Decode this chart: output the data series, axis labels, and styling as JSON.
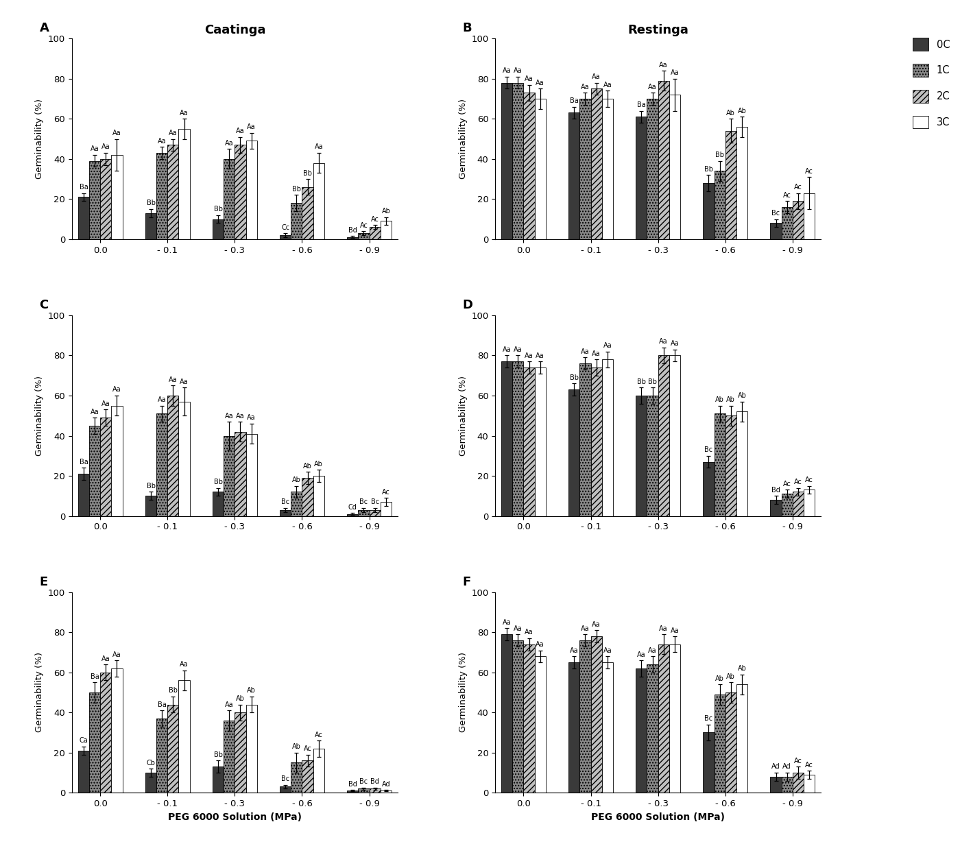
{
  "panels": [
    "A",
    "B",
    "C",
    "D",
    "E",
    "F"
  ],
  "panel_titles": {
    "A": "Caatinga",
    "B": "Restinga",
    "C": "",
    "D": "",
    "E": "",
    "F": ""
  },
  "x_labels": [
    "0.0",
    "- 0.1",
    "- 0.3",
    "- 0.6",
    "- 0.9"
  ],
  "legend_labels": [
    "0C",
    "1C",
    "2C",
    "3C"
  ],
  "bar_colors": [
    "#3a3a3a",
    "#888888",
    "#c0c0c0",
    "#ffffff"
  ],
  "bar_hatches": [
    "",
    "....",
    "////",
    ""
  ],
  "bar_edgecolors": [
    "#000000",
    "#000000",
    "#000000",
    "#000000"
  ],
  "ylabel": "Germinability (%)",
  "xlabel": "PEG 6000 Solution (MPa)",
  "data": {
    "A": {
      "values": [
        [
          21,
          39,
          40,
          42
        ],
        [
          13,
          43,
          47,
          55
        ],
        [
          10,
          40,
          47,
          49
        ],
        [
          2,
          18,
          26,
          38
        ],
        [
          1,
          3,
          6,
          9
        ]
      ],
      "errors": [
        [
          2,
          3,
          3,
          8
        ],
        [
          2,
          3,
          3,
          5
        ],
        [
          2,
          5,
          4,
          4
        ],
        [
          1,
          4,
          4,
          5
        ],
        [
          0.5,
          1,
          1,
          2
        ]
      ],
      "labels": [
        [
          "Ba",
          "Aa",
          "Aa",
          "Aa"
        ],
        [
          "Bb",
          "Aa",
          "Aa",
          "Aa"
        ],
        [
          "Bb",
          "Aa",
          "Aa",
          "Aa"
        ],
        [
          "Cc",
          "Bb",
          "Bb",
          "Aa"
        ],
        [
          "Bd",
          "Ac",
          "Ac",
          "Ab"
        ]
      ]
    },
    "B": {
      "values": [
        [
          78,
          78,
          73,
          70
        ],
        [
          63,
          70,
          75,
          70
        ],
        [
          61,
          70,
          79,
          72
        ],
        [
          28,
          34,
          54,
          56
        ],
        [
          8,
          16,
          19,
          23
        ]
      ],
      "errors": [
        [
          3,
          3,
          4,
          5
        ],
        [
          3,
          3,
          3,
          4
        ],
        [
          3,
          3,
          5,
          8
        ],
        [
          4,
          5,
          6,
          5
        ],
        [
          2,
          3,
          4,
          8
        ]
      ],
      "labels": [
        [
          "Aa",
          "Aa",
          "Aa",
          "Aa"
        ],
        [
          "Ba",
          "Aa",
          "Aa",
          "Aa"
        ],
        [
          "Ba",
          "Aa",
          "Aa",
          "Aa"
        ],
        [
          "Bb",
          "Bb",
          "Ab",
          "Ab"
        ],
        [
          "Bc",
          "Ac",
          "Ac",
          "Ac"
        ]
      ]
    },
    "C": {
      "values": [
        [
          21,
          45,
          49,
          55
        ],
        [
          10,
          51,
          60,
          57
        ],
        [
          12,
          40,
          42,
          41
        ],
        [
          3,
          12,
          19,
          20
        ],
        [
          1,
          3,
          3,
          7
        ]
      ],
      "errors": [
        [
          3,
          4,
          4,
          5
        ],
        [
          2,
          4,
          5,
          7
        ],
        [
          2,
          7,
          5,
          5
        ],
        [
          1,
          3,
          3,
          3
        ],
        [
          0.5,
          1,
          1,
          2
        ]
      ],
      "labels": [
        [
          "Ba",
          "Aa",
          "Aa",
          "Aa"
        ],
        [
          "Bb",
          "Aa",
          "Aa",
          "Aa"
        ],
        [
          "Bb",
          "Aa",
          "Aa",
          "Aa"
        ],
        [
          "Bc",
          "Ab",
          "Ab",
          "Ab"
        ],
        [
          "Cd",
          "Bc",
          "Bc",
          "Ac"
        ]
      ]
    },
    "D": {
      "values": [
        [
          77,
          77,
          74,
          74
        ],
        [
          63,
          76,
          74,
          78
        ],
        [
          60,
          60,
          80,
          80
        ],
        [
          27,
          51,
          50,
          52
        ],
        [
          8,
          11,
          12,
          13
        ]
      ],
      "errors": [
        [
          3,
          3,
          3,
          3
        ],
        [
          3,
          3,
          4,
          4
        ],
        [
          4,
          4,
          4,
          3
        ],
        [
          3,
          4,
          5,
          5
        ],
        [
          2,
          2,
          2,
          2
        ]
      ],
      "labels": [
        [
          "Aa",
          "Aa",
          "Aa",
          "Aa"
        ],
        [
          "Bb",
          "Aa",
          "Aa",
          "Aa"
        ],
        [
          "Bb",
          "Bb",
          "Aa",
          "Aa"
        ],
        [
          "Bc",
          "Ab",
          "Ab",
          "Ab"
        ],
        [
          "Bd",
          "Ac",
          "Ac",
          "Ac"
        ]
      ]
    },
    "E": {
      "values": [
        [
          21,
          50,
          60,
          62
        ],
        [
          10,
          37,
          44,
          56
        ],
        [
          13,
          36,
          40,
          44
        ],
        [
          3,
          15,
          16,
          22
        ],
        [
          1,
          2,
          2,
          1
        ]
      ],
      "errors": [
        [
          2,
          5,
          4,
          4
        ],
        [
          2,
          4,
          4,
          5
        ],
        [
          3,
          5,
          4,
          4
        ],
        [
          1,
          5,
          3,
          4
        ],
        [
          0.3,
          0.5,
          0.5,
          0.3
        ]
      ],
      "labels": [
        [
          "Ca",
          "Ba",
          "Aa",
          "Aa"
        ],
        [
          "Cb",
          "Ba",
          "Bb",
          "Aa"
        ],
        [
          "Bb",
          "Aa",
          "Ab",
          "Ab"
        ],
        [
          "Bc",
          "Ab",
          "Ac",
          "Ac"
        ],
        [
          "Bd",
          "Bc",
          "Bd",
          "Ad"
        ]
      ]
    },
    "F": {
      "values": [
        [
          79,
          76,
          74,
          68
        ],
        [
          65,
          76,
          78,
          65
        ],
        [
          62,
          64,
          74,
          74
        ],
        [
          30,
          49,
          50,
          54
        ],
        [
          8,
          8,
          10,
          9
        ]
      ],
      "errors": [
        [
          3,
          3,
          3,
          3
        ],
        [
          3,
          3,
          3,
          3
        ],
        [
          4,
          4,
          5,
          4
        ],
        [
          4,
          5,
          5,
          5
        ],
        [
          2,
          2,
          3,
          2
        ]
      ],
      "labels": [
        [
          "Aa",
          "Aa",
          "Aa",
          "Aa"
        ],
        [
          "Aa",
          "Aa",
          "Aa",
          "Aa"
        ],
        [
          "Aa",
          "Aa",
          "Aa",
          "Aa"
        ],
        [
          "Bc",
          "Ab",
          "Ab",
          "Ab"
        ],
        [
          "Ad",
          "Ad",
          "Ac",
          "Ac"
        ]
      ]
    }
  }
}
